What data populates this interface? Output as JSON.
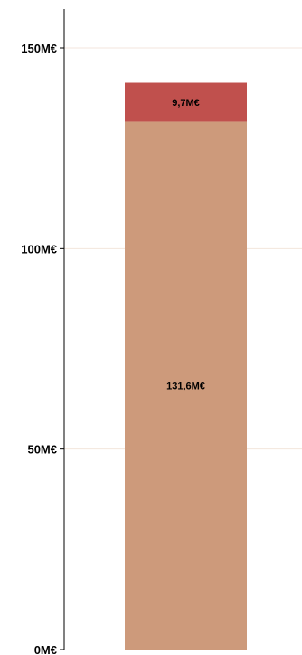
{
  "chart_data": {
    "type": "bar",
    "stacked": true,
    "categories": [
      ""
    ],
    "series": [
      {
        "values": [
          131.6
        ],
        "color": "#cd9a7b"
      },
      {
        "values": [
          9.7
        ],
        "color": "#c0504d"
      }
    ],
    "data_labels": [
      [
        "131,6M€"
      ],
      [
        "9,7M€"
      ]
    ],
    "ylim": [
      0,
      150
    ],
    "y_ticks": [
      {
        "value": 0,
        "label": "0M€"
      },
      {
        "value": 50,
        "label": "50M€"
      },
      {
        "value": 100,
        "label": "100M€"
      },
      {
        "value": 150,
        "label": "150M€"
      }
    ],
    "title": "",
    "xlabel": "",
    "ylabel": "",
    "grid": true,
    "grid_color": "#f3e6dc",
    "axis_color": "#000000"
  }
}
